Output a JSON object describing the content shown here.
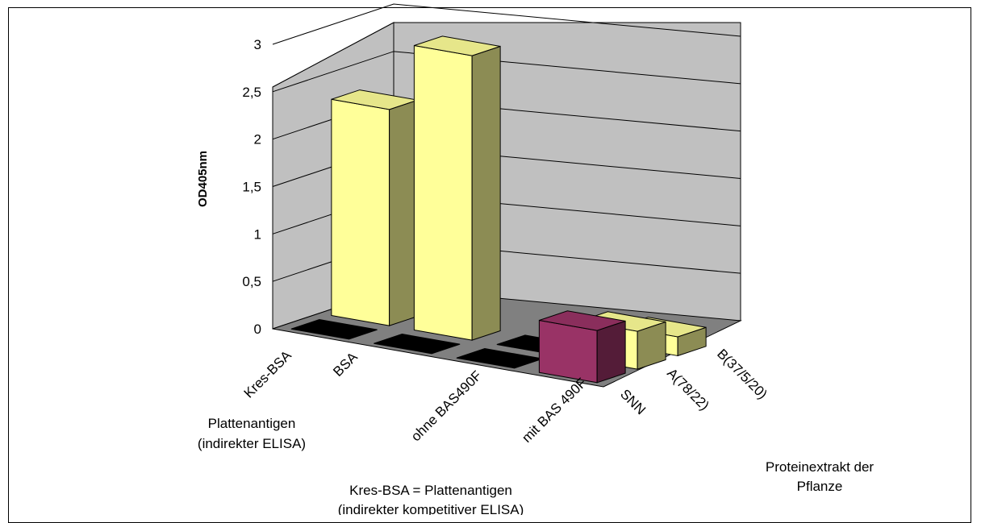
{
  "chart_data": {
    "type": "bar",
    "subtype": "3d-column",
    "ylabel": "OD405nm",
    "ylim": [
      0,
      3
    ],
    "ytick_step": 0.5,
    "yticks": [
      "0",
      "0,5",
      "1",
      "1,5",
      "2",
      "2,5",
      "3"
    ],
    "grid": true,
    "categories": [
      "Kres-BSA",
      "BSA",
      "ohne BAS490F",
      "mit BAS 490F"
    ],
    "series_axis_labels": [
      "SNN",
      "A(78/22)",
      "B(37/5/20)"
    ],
    "series": [
      {
        "key": "SNN",
        "color": "#993366",
        "values": [
          0.0,
          0.0,
          0.0,
          0.55
        ]
      },
      {
        "key": "A",
        "color": "#ffff99",
        "values": [
          2.28,
          3.0,
          0.0,
          0.4
        ]
      },
      {
        "key": "B",
        "color": "#ffff99",
        "values": [
          null,
          null,
          null,
          0.2
        ]
      }
    ],
    "annotations": {
      "plattenantigen": [
        "Plattenantigen",
        "(indirekter ELISA)"
      ],
      "kres_note": [
        "Kres-BSA = Plattenantigen",
        "(indirekter kompetitiver ELISA)"
      ],
      "protein_axis": [
        "Proteinextrakt der",
        "Pflanze"
      ]
    }
  }
}
